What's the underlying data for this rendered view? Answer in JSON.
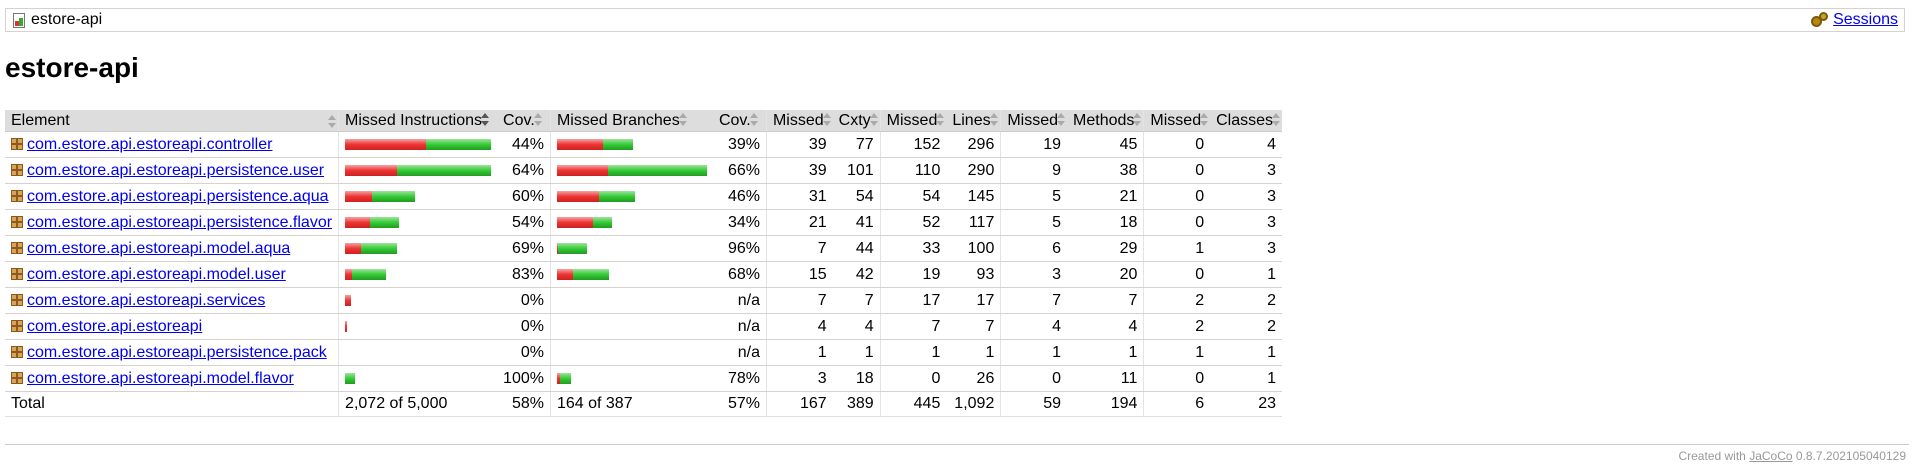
{
  "breadcrumb": {
    "title": "estore-api",
    "sessions_label": "Sessions"
  },
  "page_title": "estore-api",
  "table": {
    "headers": {
      "element": "Element",
      "missed_instructions": "Missed Instructions",
      "cov1": "Cov.",
      "missed_branches": "Missed Branches",
      "cov2": "Cov.",
      "missed_cxty": "Missed",
      "cxty": "Cxty",
      "missed_lines": "Missed",
      "lines": "Lines",
      "missed_methods": "Missed",
      "methods": "Methods",
      "missed_classes": "Missed",
      "classes": "Classes"
    },
    "rows": [
      {
        "name": "com.estore.api.estoreapi.controller",
        "instr_red": 81,
        "instr_green": 65,
        "instr_cov": "44%",
        "br_red": 46,
        "br_green": 30,
        "br_cov": "39%",
        "mcx": "39",
        "cx": "77",
        "ml": "152",
        "l": "296",
        "mm": "19",
        "m": "45",
        "mc": "0",
        "c": "4"
      },
      {
        "name": "com.estore.api.estoreapi.persistence.user",
        "instr_red": 52,
        "instr_green": 94,
        "instr_cov": "64%",
        "br_red": 51,
        "br_green": 99,
        "br_cov": "66%",
        "mcx": "39",
        "cx": "101",
        "ml": "110",
        "l": "290",
        "mm": "9",
        "m": "38",
        "mc": "0",
        "c": "3"
      },
      {
        "name": "com.estore.api.estoreapi.persistence.aqua",
        "instr_red": 27,
        "instr_green": 43,
        "instr_cov": "60%",
        "br_red": 42,
        "br_green": 36,
        "br_cov": "46%",
        "mcx": "31",
        "cx": "54",
        "ml": "54",
        "l": "145",
        "mm": "5",
        "m": "21",
        "mc": "0",
        "c": "3"
      },
      {
        "name": "com.estore.api.estoreapi.persistence.flavor",
        "instr_red": 25,
        "instr_green": 29,
        "instr_cov": "54%",
        "br_red": 36,
        "br_green": 19,
        "br_cov": "34%",
        "mcx": "21",
        "cx": "41",
        "ml": "52",
        "l": "117",
        "mm": "5",
        "m": "18",
        "mc": "0",
        "c": "3"
      },
      {
        "name": "com.estore.api.estoreapi.model.aqua",
        "instr_red": 16,
        "instr_green": 36,
        "instr_cov": "69%",
        "br_red": 1,
        "br_green": 29,
        "br_cov": "96%",
        "mcx": "7",
        "cx": "44",
        "ml": "33",
        "l": "100",
        "mm": "6",
        "m": "29",
        "mc": "1",
        "c": "3"
      },
      {
        "name": "com.estore.api.estoreapi.model.user",
        "instr_red": 7,
        "instr_green": 34,
        "instr_cov": "83%",
        "br_red": 16,
        "br_green": 36,
        "br_cov": "68%",
        "mcx": "15",
        "cx": "42",
        "ml": "19",
        "l": "93",
        "mm": "3",
        "m": "20",
        "mc": "0",
        "c": "1"
      },
      {
        "name": "com.estore.api.estoreapi.services",
        "instr_red": 6,
        "instr_green": 0,
        "instr_cov": "0%",
        "br_red": 0,
        "br_green": 0,
        "br_cov": "n/a",
        "mcx": "7",
        "cx": "7",
        "ml": "17",
        "l": "17",
        "mm": "7",
        "m": "7",
        "mc": "2",
        "c": "2"
      },
      {
        "name": "com.estore.api.estoreapi",
        "instr_red": 2,
        "instr_green": 0,
        "instr_cov": "0%",
        "br_red": 0,
        "br_green": 0,
        "br_cov": "n/a",
        "mcx": "4",
        "cx": "4",
        "ml": "7",
        "l": "7",
        "mm": "4",
        "m": "4",
        "mc": "2",
        "c": "2"
      },
      {
        "name": "com.estore.api.estoreapi.persistence.pack",
        "instr_red": 0,
        "instr_green": 0,
        "instr_cov": "0%",
        "br_red": 0,
        "br_green": 0,
        "br_cov": "n/a",
        "mcx": "1",
        "cx": "1",
        "ml": "1",
        "l": "1",
        "mm": "1",
        "m": "1",
        "mc": "1",
        "c": "1"
      },
      {
        "name": "com.estore.api.estoreapi.model.flavor",
        "instr_red": 0,
        "instr_green": 10,
        "instr_cov": "100%",
        "br_red": 3,
        "br_green": 11,
        "br_cov": "78%",
        "mcx": "3",
        "cx": "18",
        "ml": "0",
        "l": "26",
        "mm": "0",
        "m": "11",
        "mc": "0",
        "c": "1"
      }
    ],
    "total": {
      "label": "Total",
      "instr": "2,072 of 5,000",
      "instr_cov": "58%",
      "br": "164 of 387",
      "br_cov": "57%",
      "mcx": "167",
      "cx": "389",
      "ml": "445",
      "l": "1,092",
      "mm": "59",
      "m": "194",
      "mc": "6",
      "c": "23"
    }
  },
  "footer": {
    "prefix": "Created with",
    "link": "JaCoCo",
    "version": "0.8.7.202105040129"
  },
  "colors": {
    "missed": "#ee3333",
    "covered": "#33cc33",
    "header_bg": "#dddddd"
  }
}
